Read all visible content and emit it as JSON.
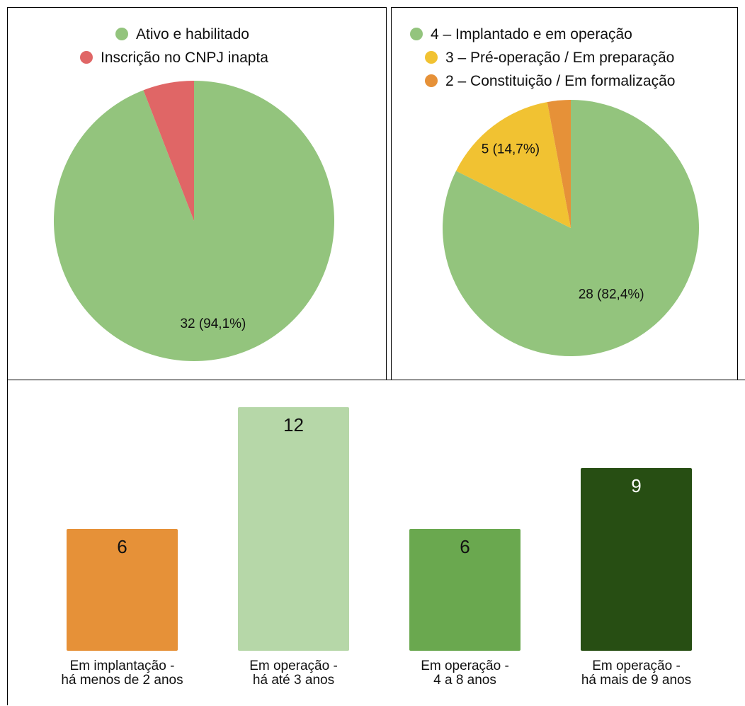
{
  "chart_data": [
    {
      "type": "pie",
      "title": "",
      "slices": [
        {
          "label": "Ativo e habilitado",
          "value": 32,
          "value_label": "32 (94,1%)",
          "color": "#93c47d"
        },
        {
          "label": "Inscrição no CNPJ inapta",
          "value": 2,
          "value_label": "",
          "color": "#e06666"
        }
      ],
      "legend_position": "top"
    },
    {
      "type": "pie",
      "title": "",
      "slices": [
        {
          "label": "4 – Implantado e em operação",
          "value": 28,
          "value_label": "28 (82,4%)",
          "color": "#93c47d"
        },
        {
          "label": "3 – Pré-operação / Em preparação",
          "value": 5,
          "value_label": "5 (14,7%)",
          "color": "#f1c232"
        },
        {
          "label": "2 – Constituição / Em formalização",
          "value": 1,
          "value_label": "",
          "color": "#e69138"
        }
      ],
      "legend_position": "top"
    },
    {
      "type": "bar",
      "title": "",
      "xlabel": "",
      "ylabel": "",
      "categories": [
        [
          "Em implantação -",
          "há menos de 2 anos"
        ],
        [
          "Em operação -",
          "há até 3 anos"
        ],
        [
          "Em operação -",
          "4 a 8 anos"
        ],
        [
          "Em operação -",
          "há mais de 9 anos"
        ]
      ],
      "values": [
        6,
        12,
        6,
        9
      ],
      "colors": [
        "#e69138",
        "#b6d7a8",
        "#6aa84f",
        "#274e13"
      ],
      "label_colors": [
        "#111111",
        "#111111",
        "#111111",
        "#ffffff"
      ],
      "grid": false,
      "legend": false
    }
  ]
}
